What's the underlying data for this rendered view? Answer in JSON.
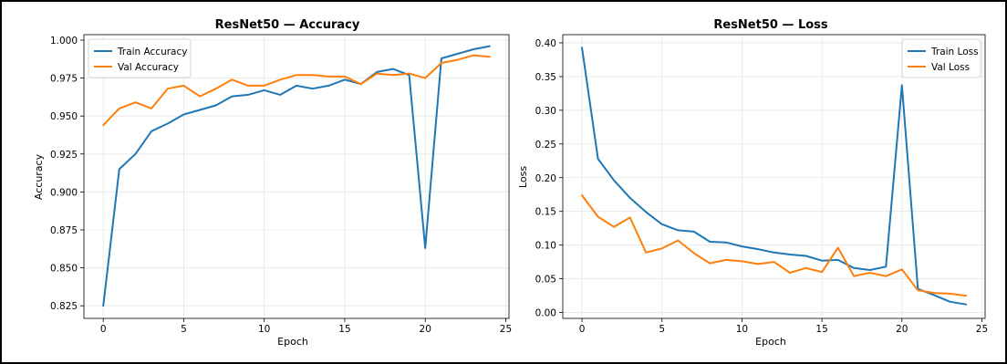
{
  "chart_data": [
    {
      "type": "line",
      "title": "ResNet50 — Accuracy",
      "xlabel": "Epoch",
      "ylabel": "Accuracy",
      "xlim": [
        -1.2,
        25.2
      ],
      "ylim": [
        0.8167,
        1.0036
      ],
      "xticks": [
        0,
        5,
        10,
        15,
        20,
        25
      ],
      "xtick_labels": [
        "0",
        "5",
        "10",
        "15",
        "20",
        "25"
      ],
      "yticks": [
        0.825,
        0.85,
        0.875,
        0.9,
        0.925,
        0.95,
        0.975,
        1.0
      ],
      "ytick_labels": [
        "0.825",
        "0.850",
        "0.875",
        "0.900",
        "0.925",
        "0.950",
        "0.975",
        "1.000"
      ],
      "grid": true,
      "legend_position": "top-left",
      "x": [
        0,
        1,
        2,
        3,
        4,
        5,
        6,
        7,
        8,
        9,
        10,
        11,
        12,
        13,
        14,
        15,
        16,
        17,
        18,
        19,
        20,
        21,
        22,
        23,
        24
      ],
      "series": [
        {
          "name": "Train Accuracy",
          "color": "#1f77b4",
          "values": [
            0.825,
            0.915,
            0.925,
            0.94,
            0.945,
            0.951,
            0.954,
            0.957,
            0.963,
            0.964,
            0.967,
            0.964,
            0.97,
            0.968,
            0.97,
            0.974,
            0.971,
            0.979,
            0.981,
            0.977,
            0.863,
            0.988,
            0.991,
            0.994,
            0.996
          ]
        },
        {
          "name": "Val Accuracy",
          "color": "#ff7f0e",
          "values": [
            0.944,
            0.955,
            0.959,
            0.955,
            0.968,
            0.97,
            0.963,
            0.968,
            0.974,
            0.97,
            0.97,
            0.974,
            0.977,
            0.977,
            0.976,
            0.976,
            0.971,
            0.978,
            0.977,
            0.978,
            0.975,
            0.985,
            0.987,
            0.99,
            0.989
          ]
        }
      ]
    },
    {
      "type": "line",
      "title": "ResNet50 — Loss",
      "xlabel": "Epoch",
      "ylabel": "Loss",
      "xlim": [
        -1.2,
        25.2
      ],
      "ylim": [
        -0.0087,
        0.4121
      ],
      "xticks": [
        0,
        5,
        10,
        15,
        20,
        25
      ],
      "xtick_labels": [
        "0",
        "5",
        "10",
        "15",
        "20",
        "25"
      ],
      "yticks": [
        0.0,
        0.05,
        0.1,
        0.15,
        0.2,
        0.25,
        0.3,
        0.35,
        0.4
      ],
      "ytick_labels": [
        "0.00",
        "0.05",
        "0.10",
        "0.15",
        "0.20",
        "0.25",
        "0.30",
        "0.35",
        "0.40"
      ],
      "grid": true,
      "legend_position": "top-right",
      "x": [
        0,
        1,
        2,
        3,
        4,
        5,
        6,
        7,
        8,
        9,
        10,
        11,
        12,
        13,
        14,
        15,
        16,
        17,
        18,
        19,
        20,
        21,
        22,
        23,
        24
      ],
      "series": [
        {
          "name": "Train Loss",
          "color": "#1f77b4",
          "values": [
            0.393,
            0.228,
            0.196,
            0.17,
            0.149,
            0.131,
            0.122,
            0.12,
            0.105,
            0.104,
            0.098,
            0.094,
            0.089,
            0.086,
            0.084,
            0.077,
            0.078,
            0.066,
            0.063,
            0.068,
            0.337,
            0.035,
            0.026,
            0.016,
            0.012
          ]
        },
        {
          "name": "Val Loss",
          "color": "#ff7f0e",
          "values": [
            0.174,
            0.142,
            0.127,
            0.141,
            0.089,
            0.095,
            0.107,
            0.088,
            0.073,
            0.078,
            0.076,
            0.072,
            0.075,
            0.059,
            0.066,
            0.06,
            0.096,
            0.054,
            0.059,
            0.054,
            0.064,
            0.033,
            0.029,
            0.028,
            0.025
          ]
        }
      ]
    }
  ]
}
